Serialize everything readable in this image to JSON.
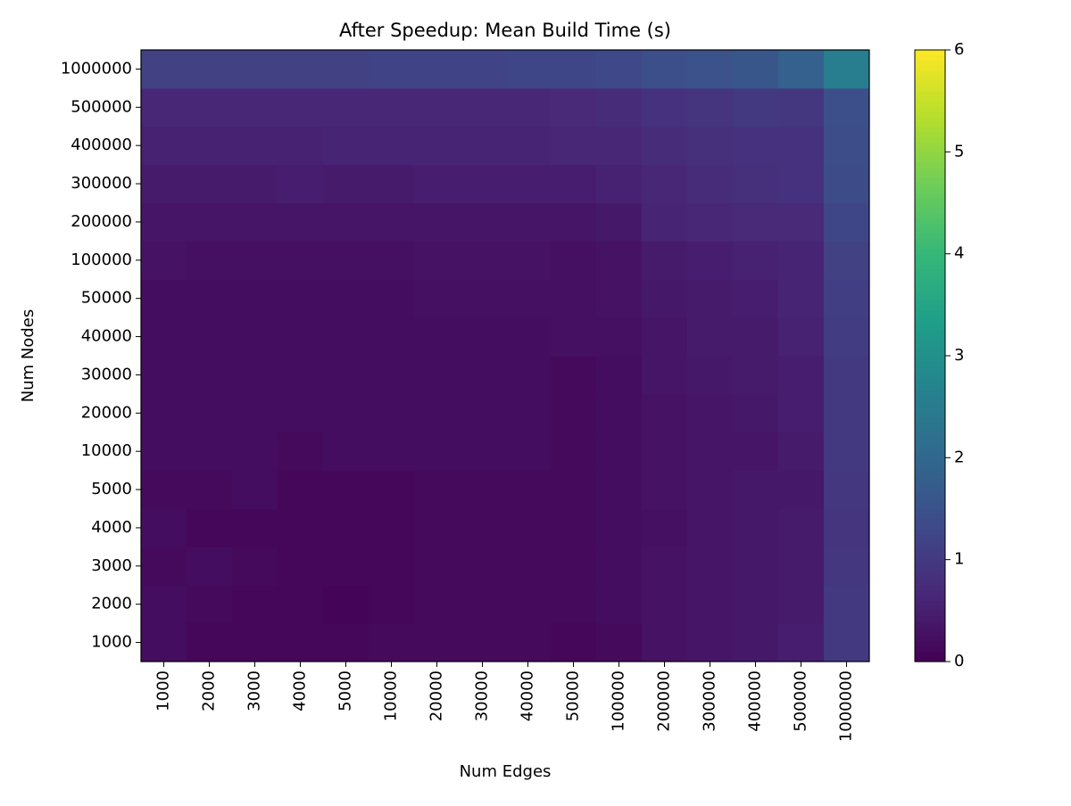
{
  "chart_data": {
    "type": "heatmap",
    "title": "After Speedup: Mean Build Time (s)",
    "x_label": "Num Edges",
    "y_label": "Num Nodes",
    "x_categories": [
      "1000",
      "2000",
      "3000",
      "4000",
      "5000",
      "10000",
      "20000",
      "30000",
      "40000",
      "50000",
      "100000",
      "200000",
      "300000",
      "400000",
      "500000",
      "1000000"
    ],
    "y_categories": [
      "1000",
      "2000",
      "3000",
      "4000",
      "5000",
      "10000",
      "20000",
      "30000",
      "40000",
      "50000",
      "100000",
      "200000",
      "300000",
      "400000",
      "500000",
      "1000000"
    ],
    "values": [
      [
        0.2,
        0.1,
        0.1,
        0.1,
        0.1,
        0.15,
        0.15,
        0.15,
        0.15,
        0.1,
        0.15,
        0.3,
        0.35,
        0.4,
        0.5,
        1.0
      ],
      [
        0.2,
        0.15,
        0.1,
        0.1,
        0.05,
        0.1,
        0.15,
        0.15,
        0.15,
        0.15,
        0.2,
        0.3,
        0.35,
        0.4,
        0.45,
        1.0
      ],
      [
        0.15,
        0.2,
        0.15,
        0.1,
        0.1,
        0.1,
        0.15,
        0.15,
        0.15,
        0.15,
        0.2,
        0.3,
        0.35,
        0.4,
        0.45,
        0.95
      ],
      [
        0.2,
        0.1,
        0.1,
        0.1,
        0.1,
        0.1,
        0.15,
        0.15,
        0.15,
        0.15,
        0.2,
        0.25,
        0.35,
        0.4,
        0.45,
        0.9
      ],
      [
        0.15,
        0.15,
        0.2,
        0.1,
        0.1,
        0.1,
        0.15,
        0.15,
        0.15,
        0.15,
        0.2,
        0.3,
        0.35,
        0.4,
        0.4,
        0.95
      ],
      [
        0.2,
        0.2,
        0.2,
        0.15,
        0.2,
        0.2,
        0.2,
        0.2,
        0.2,
        0.15,
        0.2,
        0.3,
        0.35,
        0.35,
        0.45,
        1.0
      ],
      [
        0.2,
        0.2,
        0.2,
        0.2,
        0.2,
        0.2,
        0.2,
        0.2,
        0.2,
        0.15,
        0.2,
        0.3,
        0.35,
        0.4,
        0.5,
        1.0
      ],
      [
        0.2,
        0.2,
        0.2,
        0.2,
        0.2,
        0.2,
        0.2,
        0.2,
        0.2,
        0.15,
        0.2,
        0.35,
        0.4,
        0.45,
        0.5,
        1.0
      ],
      [
        0.2,
        0.2,
        0.2,
        0.2,
        0.2,
        0.2,
        0.2,
        0.2,
        0.2,
        0.25,
        0.25,
        0.35,
        0.45,
        0.45,
        0.55,
        1.05
      ],
      [
        0.2,
        0.2,
        0.2,
        0.2,
        0.2,
        0.2,
        0.25,
        0.25,
        0.25,
        0.25,
        0.3,
        0.4,
        0.45,
        0.5,
        0.6,
        1.1
      ],
      [
        0.3,
        0.25,
        0.25,
        0.25,
        0.25,
        0.25,
        0.3,
        0.3,
        0.3,
        0.25,
        0.3,
        0.45,
        0.5,
        0.55,
        0.6,
        1.15
      ],
      [
        0.35,
        0.35,
        0.35,
        0.35,
        0.35,
        0.35,
        0.35,
        0.35,
        0.35,
        0.35,
        0.4,
        0.6,
        0.65,
        0.7,
        0.7,
        1.25
      ],
      [
        0.45,
        0.45,
        0.45,
        0.5,
        0.45,
        0.45,
        0.5,
        0.5,
        0.5,
        0.5,
        0.55,
        0.65,
        0.75,
        0.8,
        0.85,
        1.35
      ],
      [
        0.55,
        0.55,
        0.55,
        0.55,
        0.6,
        0.6,
        0.6,
        0.6,
        0.6,
        0.65,
        0.65,
        0.75,
        0.8,
        0.85,
        0.85,
        1.4
      ],
      [
        0.65,
        0.65,
        0.65,
        0.65,
        0.65,
        0.65,
        0.65,
        0.65,
        0.65,
        0.7,
        0.75,
        0.85,
        0.9,
        1.0,
        0.95,
        1.45
      ],
      [
        1.15,
        1.15,
        1.15,
        1.15,
        1.15,
        1.2,
        1.2,
        1.2,
        1.25,
        1.25,
        1.3,
        1.45,
        1.5,
        1.6,
        1.85,
        2.55
      ]
    ],
    "colormap": "viridis",
    "clim": [
      0,
      6
    ],
    "colorbar_ticks": [
      0,
      1,
      2,
      3,
      4,
      5,
      6
    ]
  }
}
